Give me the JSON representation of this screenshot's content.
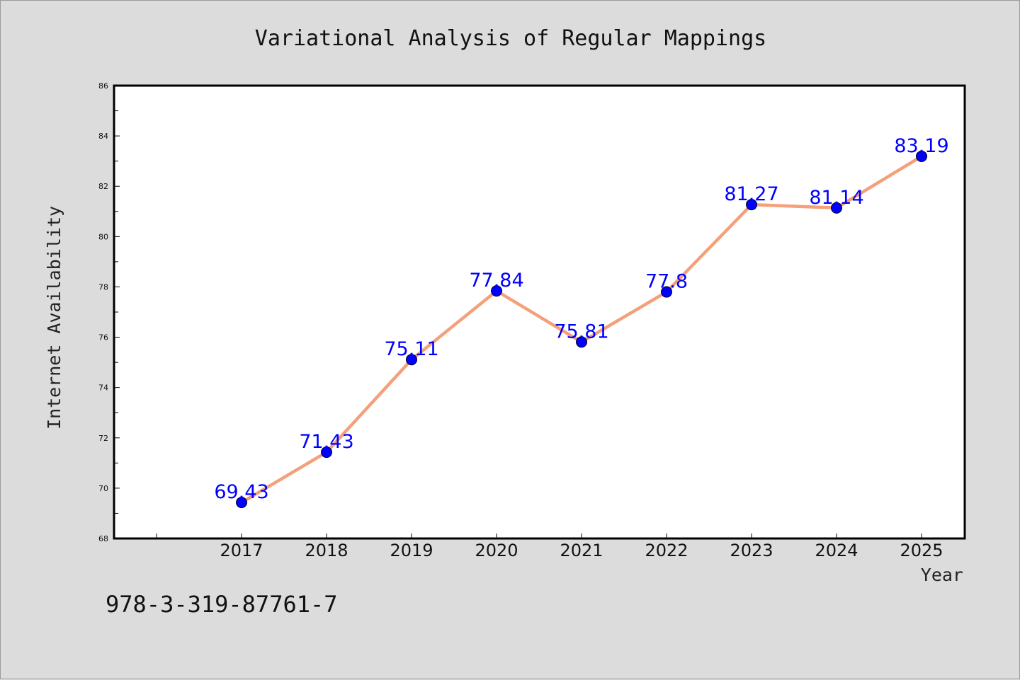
{
  "chart_data": {
    "type": "line",
    "title": "Variational Analysis of Regular Mappings",
    "xlabel": "Year",
    "ylabel": "Internet Availability",
    "categories": [
      "2017",
      "2018",
      "2019",
      "2020",
      "2021",
      "2022",
      "2023",
      "2024",
      "2025"
    ],
    "series": [
      {
        "values": [
          69.43,
          71.43,
          75.11,
          77.84,
          75.81,
          77.8,
          81.27,
          81.14,
          83.19
        ],
        "labels": [
          "69.43",
          "71.43",
          "75.11",
          "77.84",
          "75.81",
          "77.8",
          "81.27",
          "81.14",
          "83.19"
        ],
        "line_color": "#f4a07a",
        "marker_color": "#0000ff"
      }
    ],
    "ylim": [
      68,
      86
    ],
    "yticks": [
      "68",
      "70",
      "72",
      "74",
      "76",
      "78",
      "80",
      "82",
      "84",
      "86"
    ],
    "grid": false,
    "legend": "none"
  },
  "annotation": "978-3-319-87761-7",
  "colors": {
    "background": "#dcdcdc",
    "plot_background": "#ffffff",
    "line": "#f4a07a",
    "marker": "#0000ff",
    "data_label": "#0000ff"
  }
}
